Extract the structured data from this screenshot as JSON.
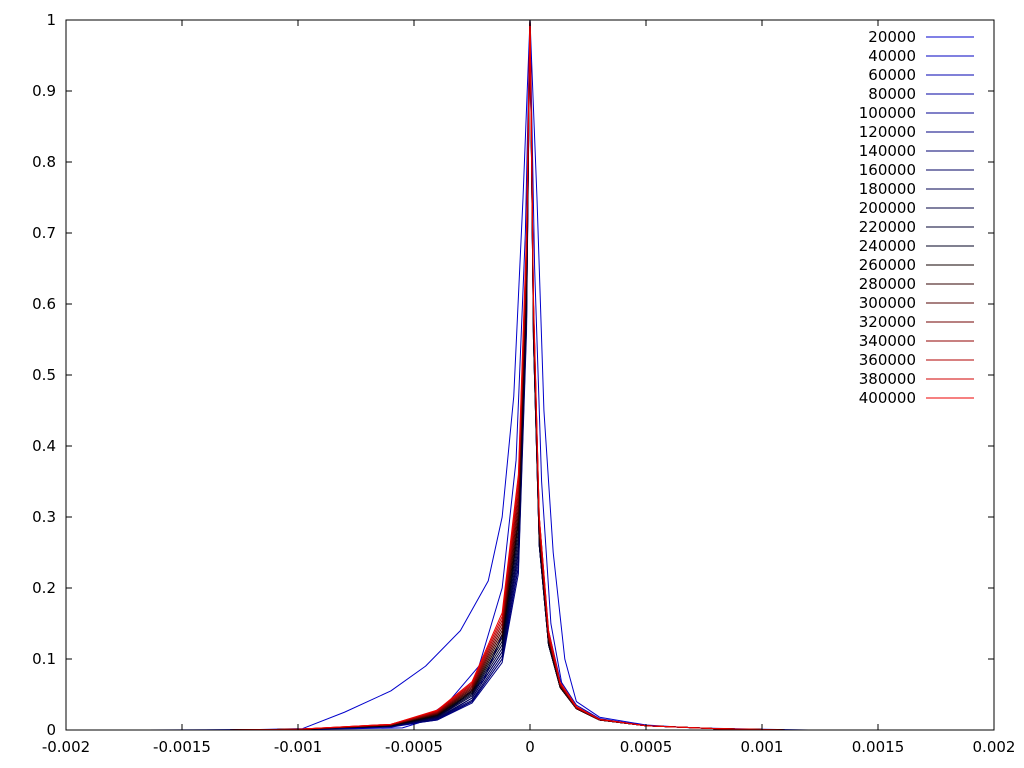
{
  "chart_data": {
    "type": "line",
    "title": "",
    "xlabel": "",
    "ylabel": "",
    "xlim": [
      -0.002,
      0.002
    ],
    "ylim": [
      0,
      1
    ],
    "grid": false,
    "legend_position": "top-right",
    "x_ticks": [
      {
        "value": -0.002,
        "label": "-0.002"
      },
      {
        "value": -0.0015,
        "label": "-0.0015"
      },
      {
        "value": -0.001,
        "label": "-0.001"
      },
      {
        "value": -0.0005,
        "label": "-0.0005"
      },
      {
        "value": 0,
        "label": "0"
      },
      {
        "value": 0.0005,
        "label": "0.0005"
      },
      {
        "value": 0.001,
        "label": "0.001"
      },
      {
        "value": 0.0015,
        "label": "0.0015"
      },
      {
        "value": 0.002,
        "label": "0.002"
      }
    ],
    "y_ticks": [
      {
        "value": 0,
        "label": "0"
      },
      {
        "value": 0.1,
        "label": "0.1"
      },
      {
        "value": 0.2,
        "label": "0.2"
      },
      {
        "value": 0.3,
        "label": "0.3"
      },
      {
        "value": 0.4,
        "label": "0.4"
      },
      {
        "value": 0.5,
        "label": "0.5"
      },
      {
        "value": 0.6,
        "label": "0.6"
      },
      {
        "value": 0.7,
        "label": "0.7"
      },
      {
        "value": 0.8,
        "label": "0.8"
      },
      {
        "value": 0.9,
        "label": "0.9"
      },
      {
        "value": 1,
        "label": "1"
      }
    ],
    "series": [
      {
        "name": "20000",
        "color": "#0000cc",
        "x": [
          -0.00165,
          -0.0012,
          -0.00098,
          -0.0008,
          -0.0006,
          -0.00045,
          -0.0003,
          -0.00018,
          -0.00012,
          -7e-05,
          -3e-05,
          0,
          3e-05,
          6e-05,
          0.0001,
          0.00015,
          0.0002,
          0.0003,
          0.0005,
          0.0007,
          0.001,
          0.0012
        ],
        "y": [
          0,
          0.0005,
          0.002,
          0.025,
          0.055,
          0.09,
          0.14,
          0.21,
          0.3,
          0.47,
          0.75,
          1,
          0.75,
          0.45,
          0.25,
          0.1,
          0.04,
          0.018,
          0.007,
          0.003,
          0.001,
          0
        ]
      },
      {
        "name": "40000",
        "color": "#0000c0",
        "x": [
          -0.0013,
          -0.001,
          -0.00075,
          -0.00055,
          -0.00048,
          -0.00035,
          -0.00022,
          -0.00012,
          -6e-05,
          -2e-05,
          0,
          2e-05,
          5e-05,
          9e-05,
          0.00014,
          0.0002,
          0.0003,
          0.0005,
          0.0008,
          0.0011
        ],
        "y": [
          0,
          0.001,
          0.002,
          0.003,
          0.01,
          0.04,
          0.09,
          0.2,
          0.38,
          0.7,
          1,
          0.65,
          0.35,
          0.15,
          0.06,
          0.03,
          0.015,
          0.006,
          0.002,
          0
        ]
      },
      {
        "name": "60000",
        "color": "#0000b0",
        "x": [
          -0.0014,
          -0.001,
          -0.0006,
          -0.00048,
          -0.00035,
          -0.0002,
          -0.0001,
          -4e-05,
          -1.5e-05,
          0,
          1.5e-05,
          4e-05,
          8e-05,
          0.00013,
          0.0002,
          0.0003,
          0.0005,
          0.0008,
          0.0011
        ],
        "y": [
          0,
          0.001,
          0.004,
          0.01,
          0.028,
          0.07,
          0.15,
          0.33,
          0.65,
          1,
          0.6,
          0.3,
          0.14,
          0.07,
          0.035,
          0.016,
          0.006,
          0.002,
          0
        ]
      },
      {
        "name": "80000",
        "color": "#0000a0",
        "x": [
          -0.0013,
          -0.001,
          -0.0006,
          -0.0004,
          -0.00025,
          -0.00012,
          -5e-05,
          -1.5e-05,
          0,
          1.5e-05,
          4e-05,
          8e-05,
          0.00013,
          0.0002,
          0.0003,
          0.0005,
          0.0008,
          0.0011
        ],
        "y": [
          0,
          0.001,
          0.005,
          0.015,
          0.045,
          0.11,
          0.25,
          0.6,
          1,
          0.58,
          0.28,
          0.13,
          0.065,
          0.032,
          0.015,
          0.006,
          0.002,
          0
        ]
      },
      {
        "name": "100000",
        "color": "#000090",
        "x": [
          -0.0013,
          -0.001,
          -0.0006,
          -0.0004,
          -0.00025,
          -0.00012,
          -5e-05,
          -1.5e-05,
          0,
          1.5e-05,
          4e-05,
          8e-05,
          0.00013,
          0.0002,
          0.0003,
          0.0005,
          0.0008,
          0.0011
        ],
        "y": [
          0,
          0.001,
          0.005,
          0.014,
          0.04,
          0.1,
          0.23,
          0.58,
          1,
          0.56,
          0.27,
          0.125,
          0.062,
          0.031,
          0.015,
          0.006,
          0.002,
          0
        ]
      },
      {
        "name": "120000",
        "color": "#000080",
        "x": [
          -0.0013,
          -0.001,
          -0.0006,
          -0.0004,
          -0.00025,
          -0.00012,
          -5e-05,
          -1.5e-05,
          0,
          1.5e-05,
          4e-05,
          8e-05,
          0.00013,
          0.0002,
          0.0003,
          0.0005,
          0.0008,
          0.0011
        ],
        "y": [
          0,
          0.001,
          0.005,
          0.014,
          0.038,
          0.095,
          0.22,
          0.56,
          1,
          0.55,
          0.26,
          0.12,
          0.06,
          0.03,
          0.014,
          0.006,
          0.002,
          0
        ]
      },
      {
        "name": "140000",
        "color": "#000070",
        "x": [
          -0.0013,
          -0.001,
          -0.0006,
          -0.0004,
          -0.00025,
          -0.00012,
          -5e-05,
          -1.5e-05,
          0,
          1.5e-05,
          4e-05,
          8e-05,
          0.00013,
          0.0002,
          0.0003,
          0.0005,
          0.0008,
          0.0011
        ],
        "y": [
          0,
          0.001,
          0.005,
          0.015,
          0.04,
          0.1,
          0.23,
          0.57,
          1,
          0.55,
          0.26,
          0.12,
          0.06,
          0.03,
          0.014,
          0.006,
          0.002,
          0
        ]
      },
      {
        "name": "160000",
        "color": "#000060",
        "x": [
          -0.0013,
          -0.001,
          -0.0006,
          -0.0004,
          -0.00025,
          -0.00012,
          -5e-05,
          -1.5e-05,
          0,
          1.5e-05,
          4e-05,
          8e-05,
          0.00013,
          0.0002,
          0.0003,
          0.0005,
          0.0008,
          0.0011
        ],
        "y": [
          0,
          0.001,
          0.005,
          0.016,
          0.042,
          0.105,
          0.24,
          0.58,
          1,
          0.55,
          0.26,
          0.12,
          0.06,
          0.03,
          0.014,
          0.006,
          0.002,
          0
        ]
      },
      {
        "name": "180000",
        "color": "#000050",
        "x": [
          -0.0013,
          -0.001,
          -0.0006,
          -0.0004,
          -0.00025,
          -0.00012,
          -5e-05,
          -1.5e-05,
          0,
          1.5e-05,
          4e-05,
          8e-05,
          0.00013,
          0.0002,
          0.0003,
          0.0005,
          0.0008,
          0.0011
        ],
        "y": [
          0,
          0.001,
          0.006,
          0.017,
          0.045,
          0.11,
          0.25,
          0.59,
          1,
          0.55,
          0.26,
          0.12,
          0.06,
          0.03,
          0.014,
          0.006,
          0.002,
          0
        ]
      },
      {
        "name": "200000",
        "color": "#000040",
        "x": [
          -0.0013,
          -0.001,
          -0.0006,
          -0.0004,
          -0.00025,
          -0.00012,
          -5e-05,
          -1.5e-05,
          0,
          1.5e-05,
          4e-05,
          8e-05,
          0.00013,
          0.0002,
          0.0003,
          0.0005,
          0.0008,
          0.0011
        ],
        "y": [
          0,
          0.001,
          0.006,
          0.018,
          0.048,
          0.115,
          0.26,
          0.6,
          1,
          0.56,
          0.26,
          0.12,
          0.06,
          0.03,
          0.014,
          0.006,
          0.002,
          0
        ]
      },
      {
        "name": "220000",
        "color": "#000030",
        "x": [
          -0.0013,
          -0.001,
          -0.0006,
          -0.0004,
          -0.00025,
          -0.00012,
          -5e-05,
          -1.5e-05,
          0,
          1.5e-05,
          4e-05,
          8e-05,
          0.00013,
          0.0002,
          0.0003,
          0.0005,
          0.0008,
          0.0011
        ],
        "y": [
          0,
          0.001,
          0.006,
          0.019,
          0.05,
          0.12,
          0.27,
          0.61,
          1,
          0.56,
          0.27,
          0.12,
          0.06,
          0.03,
          0.014,
          0.006,
          0.002,
          0
        ]
      },
      {
        "name": "240000",
        "color": "#000020",
        "x": [
          -0.0013,
          -0.001,
          -0.0006,
          -0.0004,
          -0.00025,
          -0.00012,
          -5e-05,
          -1.5e-05,
          0,
          1.5e-05,
          4e-05,
          8e-05,
          0.00013,
          0.0002,
          0.0003,
          0.0005,
          0.0008,
          0.0011
        ],
        "y": [
          0,
          0.001,
          0.006,
          0.02,
          0.052,
          0.125,
          0.28,
          0.62,
          1,
          0.57,
          0.27,
          0.12,
          0.06,
          0.03,
          0.014,
          0.006,
          0.002,
          0
        ]
      },
      {
        "name": "260000",
        "color": "#100000",
        "x": [
          -0.0013,
          -0.001,
          -0.0006,
          -0.0004,
          -0.00025,
          -0.00012,
          -5e-05,
          -1.5e-05,
          0,
          1.5e-05,
          4e-05,
          8e-05,
          0.00013,
          0.0002,
          0.0003,
          0.0005,
          0.0008,
          0.0011
        ],
        "y": [
          0,
          0.001,
          0.006,
          0.021,
          0.054,
          0.13,
          0.29,
          0.63,
          1,
          0.57,
          0.27,
          0.125,
          0.06,
          0.03,
          0.014,
          0.006,
          0.002,
          0
        ]
      },
      {
        "name": "280000",
        "color": "#300000",
        "x": [
          -0.0013,
          -0.001,
          -0.0006,
          -0.0004,
          -0.00025,
          -0.00012,
          -5e-05,
          -1.5e-05,
          0,
          1.5e-05,
          4e-05,
          8e-05,
          0.00013,
          0.0002,
          0.0003,
          0.0005,
          0.0008,
          0.0011
        ],
        "y": [
          0,
          0.001,
          0.007,
          0.022,
          0.056,
          0.135,
          0.3,
          0.64,
          1,
          0.58,
          0.28,
          0.125,
          0.062,
          0.03,
          0.014,
          0.006,
          0.002,
          0
        ]
      },
      {
        "name": "300000",
        "color": "#500000",
        "x": [
          -0.0013,
          -0.001,
          -0.0006,
          -0.0004,
          -0.00025,
          -0.00012,
          -5e-05,
          -1.5e-05,
          0,
          1.5e-05,
          4e-05,
          8e-05,
          0.00013,
          0.0002,
          0.0003,
          0.0005,
          0.0008,
          0.0011
        ],
        "y": [
          0,
          0.001,
          0.007,
          0.023,
          0.058,
          0.14,
          0.31,
          0.65,
          1,
          0.58,
          0.28,
          0.13,
          0.062,
          0.03,
          0.014,
          0.006,
          0.002,
          0
        ]
      },
      {
        "name": "320000",
        "color": "#700000",
        "x": [
          -0.0013,
          -0.001,
          -0.0006,
          -0.0004,
          -0.00025,
          -0.00012,
          -5e-05,
          -1.5e-05,
          0,
          1.5e-05,
          4e-05,
          8e-05,
          0.00013,
          0.0002,
          0.0003,
          0.0005,
          0.0008,
          0.0011
        ],
        "y": [
          0,
          0.001,
          0.007,
          0.024,
          0.06,
          0.145,
          0.32,
          0.66,
          1,
          0.59,
          0.28,
          0.13,
          0.063,
          0.031,
          0.014,
          0.006,
          0.002,
          0
        ]
      },
      {
        "name": "340000",
        "color": "#900000",
        "x": [
          -0.0013,
          -0.001,
          -0.0006,
          -0.0004,
          -0.00025,
          -0.00012,
          -5e-05,
          -1.5e-05,
          0,
          1.5e-05,
          4e-05,
          8e-05,
          0.00013,
          0.0002,
          0.0003,
          0.0005,
          0.0008,
          0.0011
        ],
        "y": [
          0,
          0.001,
          0.007,
          0.025,
          0.062,
          0.15,
          0.33,
          0.67,
          1,
          0.59,
          0.29,
          0.13,
          0.064,
          0.031,
          0.015,
          0.006,
          0.002,
          0
        ]
      },
      {
        "name": "360000",
        "color": "#b00000",
        "x": [
          -0.0013,
          -0.001,
          -0.0006,
          -0.0004,
          -0.00025,
          -0.00012,
          -5e-05,
          -1.5e-05,
          0,
          1.5e-05,
          4e-05,
          8e-05,
          0.00013,
          0.0002,
          0.0003,
          0.0005,
          0.0008,
          0.0011
        ],
        "y": [
          0,
          0.001,
          0.008,
          0.026,
          0.064,
          0.155,
          0.34,
          0.68,
          1,
          0.6,
          0.29,
          0.135,
          0.065,
          0.032,
          0.015,
          0.006,
          0.002,
          0
        ]
      },
      {
        "name": "380000",
        "color": "#d00000",
        "x": [
          -0.0013,
          -0.001,
          -0.0006,
          -0.0004,
          -0.00025,
          -0.00012,
          -5e-05,
          -1.5e-05,
          0,
          1.5e-05,
          4e-05,
          8e-05,
          0.00013,
          0.0002,
          0.0003,
          0.0005,
          0.0008,
          0.0011
        ],
        "y": [
          0,
          0.001,
          0.008,
          0.027,
          0.066,
          0.16,
          0.35,
          0.69,
          1,
          0.6,
          0.3,
          0.135,
          0.066,
          0.032,
          0.015,
          0.006,
          0.002,
          0
        ]
      },
      {
        "name": "400000",
        "color": "#ee0000",
        "x": [
          -0.0013,
          -0.001,
          -0.0006,
          -0.0004,
          -0.00025,
          -0.00012,
          -5e-05,
          -1.5e-05,
          0,
          1.5e-05,
          4e-05,
          8e-05,
          0.00013,
          0.0002,
          0.0003,
          0.0005,
          0.0008,
          0.0011
        ],
        "y": [
          0,
          0.001,
          0.008,
          0.028,
          0.068,
          0.165,
          0.36,
          0.7,
          1,
          0.61,
          0.3,
          0.14,
          0.067,
          0.033,
          0.015,
          0.006,
          0.002,
          0
        ]
      }
    ]
  }
}
